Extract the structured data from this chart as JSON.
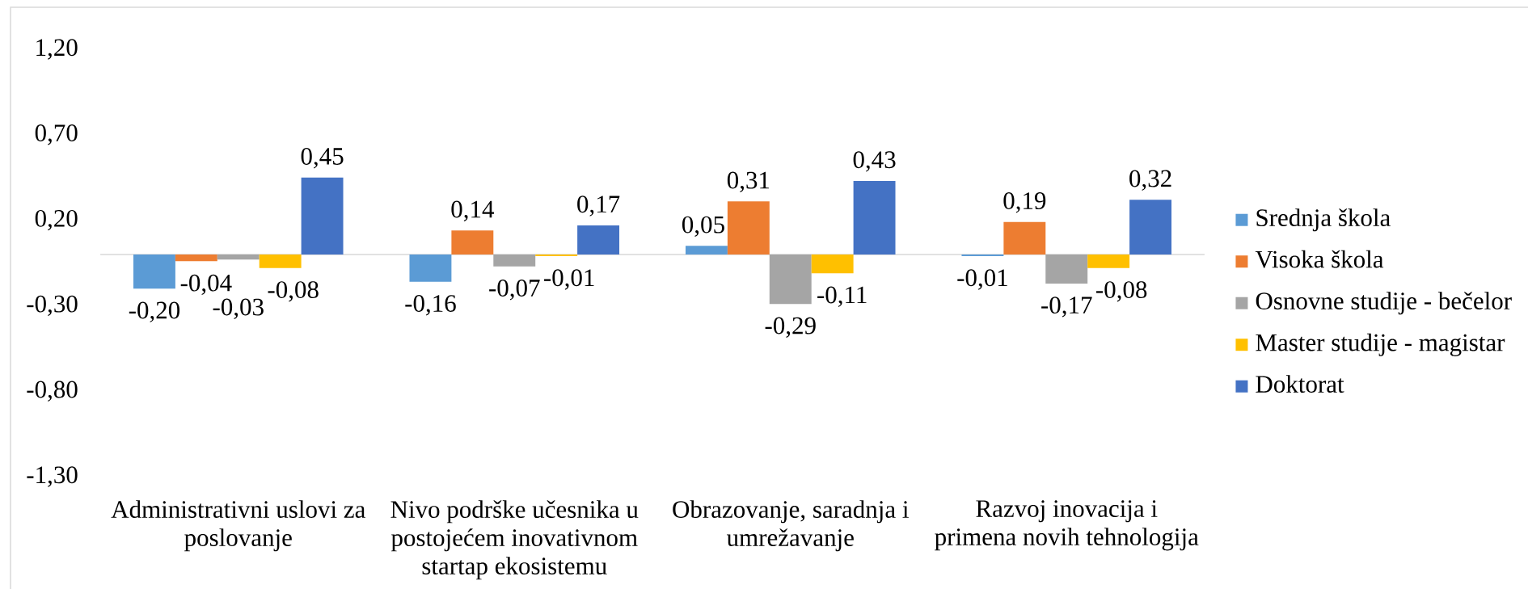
{
  "chart_data": {
    "type": "bar",
    "categories": [
      "Administrativni uslovi za poslovanje",
      "Nivo podrške učesnika u postojećem inovativnom startap ekosistemu",
      "Obrazovanje, saradnja i umrežavanje",
      "Razvoj inovacija i primena novih tehnologija"
    ],
    "series": [
      {
        "name": "Srednja škola",
        "color": "#5b9bd5",
        "values": [
          -0.2,
          -0.16,
          0.05,
          -0.01
        ],
        "value_labels": [
          "-0,20",
          "-0,16",
          "0,05",
          "-0,01"
        ]
      },
      {
        "name": "Visoka škola",
        "color": "#ed7d31",
        "values": [
          -0.04,
          0.14,
          0.31,
          0.19
        ],
        "value_labels": [
          "-0,04",
          "0,14",
          "0,31",
          "0,19"
        ]
      },
      {
        "name": "Osnovne studije - bečelor",
        "color": "#a5a5a5",
        "values": [
          -0.03,
          -0.07,
          -0.29,
          -0.17
        ],
        "value_labels": [
          "-0,03",
          "-0,07",
          "-0,29",
          "-0,17"
        ]
      },
      {
        "name": "Master studije - magistar",
        "color": "#ffc000",
        "values": [
          -0.08,
          -0.01,
          -0.11,
          -0.08
        ],
        "value_labels": [
          "-0,08",
          "-0,01",
          "-0,11",
          "-0,08"
        ]
      },
      {
        "name": "Doktorat",
        "color": "#4472c4",
        "values": [
          0.45,
          0.17,
          0.43,
          0.32
        ],
        "value_labels": [
          "0,45",
          "0,17",
          "0,43",
          "0,32"
        ]
      }
    ],
    "ylim": [
      -1.3,
      1.2
    ],
    "yticks": [
      {
        "value": 1.2,
        "label": "1,20"
      },
      {
        "value": 0.7,
        "label": "0,70"
      },
      {
        "value": 0.2,
        "label": "0,20"
      },
      {
        "value": -0.3,
        "label": "-0,30"
      },
      {
        "value": -0.8,
        "label": "-0,80"
      },
      {
        "value": -1.3,
        "label": "-1,30"
      }
    ],
    "legend": "right"
  }
}
